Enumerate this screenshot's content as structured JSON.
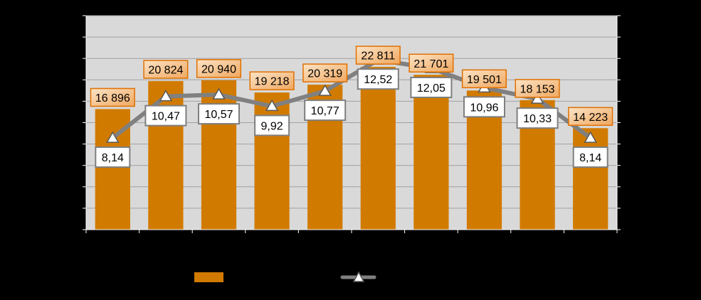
{
  "chart_data": {
    "type": "bar",
    "categories": [
      "",
      "",
      "",
      "",
      "",
      "",
      "",
      "",
      "",
      ""
    ],
    "series": [
      {
        "type": "bar",
        "values": [
          16896,
          20824,
          20940,
          19218,
          20319,
          22811,
          21701,
          19501,
          18153,
          14223
        ],
        "labels": [
          "16 896",
          "20 824",
          "20 940",
          "19 218",
          "20 319",
          "22 811",
          "21 701",
          "19 501",
          "18 153",
          "14 223"
        ]
      },
      {
        "type": "line",
        "values": [
          8.14,
          10.47,
          10.57,
          9.92,
          10.77,
          12.52,
          12.05,
          10.96,
          10.33,
          8.14
        ],
        "labels": [
          "8,14",
          "10,47",
          "10,57",
          "9,92",
          "10,77",
          "12,52",
          "12,05",
          "10,96",
          "10,33",
          "8,14"
        ]
      }
    ],
    "ylim": [
      0,
      30000
    ],
    "y2lim": [
      3,
      15
    ],
    "grid": true,
    "legend_position": "bottom",
    "colors": {
      "background": "#000000",
      "plot_area": "#d9d9d9",
      "gridline": "#a0a0a0",
      "bar": "#d17a00",
      "line": "#808080",
      "bar_label_bg": "#f3c89b",
      "bar_label_border": "#e07000",
      "line_label_bg": "#ffffff",
      "line_label_border": "#7f7f7f"
    }
  }
}
